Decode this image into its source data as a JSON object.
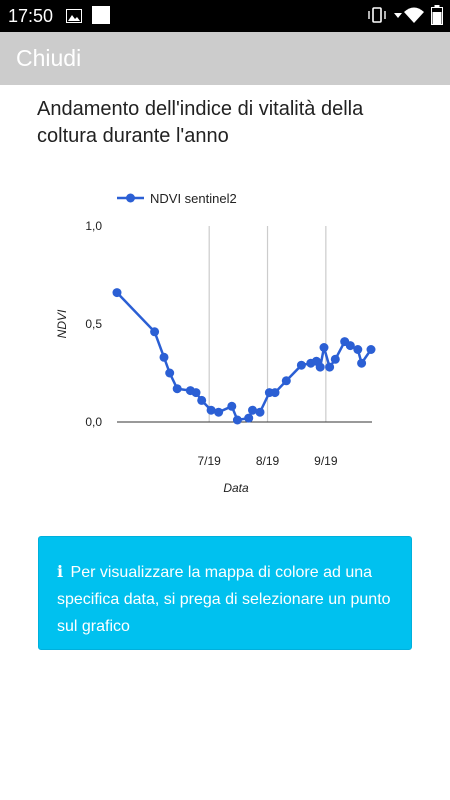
{
  "status_bar": {
    "time": "17:50"
  },
  "app_bar": {
    "close_label": "Chiudi"
  },
  "heading": "Andamento dell'indice di vitalità della coltura durante l'anno",
  "info_box": {
    "icon": "info-icon",
    "text": "Per visualizzare la mappa di colore ad una specifica data, si prega di selezionare un punto sul grafico"
  },
  "colors": {
    "series": "#2b5fd4",
    "info_bg": "#00c1ef",
    "appbar_bg": "#cccccc"
  },
  "chart_data": {
    "type": "line",
    "xlabel": "Data",
    "ylabel": "NDVI",
    "ylim": [
      0,
      1
    ],
    "y_ticks": [
      "0,0",
      "0,5",
      "1,0"
    ],
    "x_ticks": [
      {
        "label": "7/19",
        "date": "2019-07-01"
      },
      {
        "label": "8/19",
        "date": "2019-08-01"
      },
      {
        "label": "9/19",
        "date": "2019-09-01"
      }
    ],
    "legend": "top",
    "grid": "vertical",
    "series": [
      {
        "name": "NDVI sentinel2",
        "points": [
          {
            "x": "2019-05-13",
            "y": 0.66
          },
          {
            "x": "2019-06-02",
            "y": 0.46
          },
          {
            "x": "2019-06-07",
            "y": 0.33
          },
          {
            "x": "2019-06-10",
            "y": 0.25
          },
          {
            "x": "2019-06-14",
            "y": 0.17
          },
          {
            "x": "2019-06-21",
            "y": 0.16
          },
          {
            "x": "2019-06-24",
            "y": 0.15
          },
          {
            "x": "2019-06-27",
            "y": 0.11
          },
          {
            "x": "2019-07-02",
            "y": 0.06
          },
          {
            "x": "2019-07-06",
            "y": 0.05
          },
          {
            "x": "2019-07-13",
            "y": 0.08
          },
          {
            "x": "2019-07-16",
            "y": 0.01
          },
          {
            "x": "2019-07-22",
            "y": 0.02
          },
          {
            "x": "2019-07-24",
            "y": 0.06
          },
          {
            "x": "2019-07-28",
            "y": 0.05
          },
          {
            "x": "2019-08-02",
            "y": 0.15
          },
          {
            "x": "2019-08-05",
            "y": 0.15
          },
          {
            "x": "2019-08-11",
            "y": 0.21
          },
          {
            "x": "2019-08-19",
            "y": 0.29
          },
          {
            "x": "2019-08-24",
            "y": 0.3
          },
          {
            "x": "2019-08-27",
            "y": 0.31
          },
          {
            "x": "2019-08-29",
            "y": 0.28
          },
          {
            "x": "2019-08-31",
            "y": 0.38
          },
          {
            "x": "2019-09-03",
            "y": 0.28
          },
          {
            "x": "2019-09-06",
            "y": 0.32
          },
          {
            "x": "2019-09-11",
            "y": 0.41
          },
          {
            "x": "2019-09-14",
            "y": 0.39
          },
          {
            "x": "2019-09-18",
            "y": 0.37
          },
          {
            "x": "2019-09-20",
            "y": 0.3
          },
          {
            "x": "2019-09-25",
            "y": 0.37
          }
        ]
      }
    ]
  }
}
